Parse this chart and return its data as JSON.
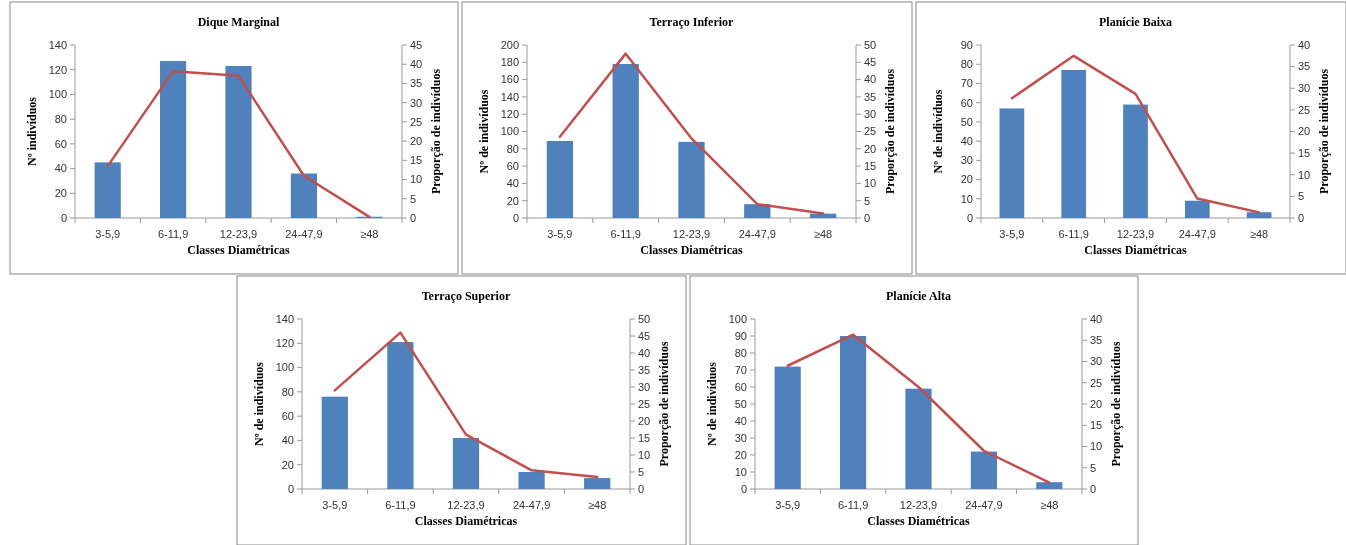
{
  "chart_data": [
    {
      "type": "bar",
      "title": "Dique Marginal",
      "xlabel": "Classes Diamétricas",
      "ylabel": "Nº indivíduos",
      "y2label": "Proporção de indivíduos",
      "categories": [
        "3-5,9",
        "6-11,9",
        "12-23,9",
        "24-47,9",
        "≥48"
      ],
      "ylim": [
        0,
        140
      ],
      "yticks": [
        0,
        20,
        40,
        60,
        80,
        100,
        120,
        140
      ],
      "y2lim": [
        0,
        45
      ],
      "y2ticks": [
        0,
        5,
        10,
        15,
        20,
        25,
        30,
        35,
        40,
        45
      ],
      "series": [
        {
          "color": "#4f81bd",
          "values": [
            45,
            127,
            123,
            36,
            1
          ]
        },
        {
          "type": "line",
          "axis": "y2",
          "color": "#c0504d",
          "values": [
            13.5,
            38.2,
            37,
            11,
            0.3
          ]
        }
      ]
    },
    {
      "type": "bar",
      "title": "Terraço Inferior",
      "xlabel": "Classes Diamétricas",
      "ylabel": "Nº de indivíduos",
      "y2label": "Proporção de indivíduos",
      "categories": [
        "3-5,9",
        "6-11,9",
        "12-23,9",
        "24-47,9",
        "≥48"
      ],
      "ylim": [
        0,
        200
      ],
      "yticks": [
        0,
        20,
        40,
        60,
        80,
        100,
        120,
        140,
        160,
        180,
        200
      ],
      "y2lim": [
        0,
        50
      ],
      "y2ticks": [
        0,
        5,
        10,
        15,
        20,
        25,
        30,
        35,
        40,
        45,
        50
      ],
      "series": [
        {
          "color": "#4f81bd",
          "values": [
            89,
            178,
            88,
            16,
            5
          ]
        },
        {
          "type": "line",
          "axis": "y2",
          "color": "#c0504d",
          "values": [
            23.5,
            47.5,
            23,
            4,
            1.3
          ]
        }
      ]
    },
    {
      "type": "bar",
      "title": "Planície Baixa",
      "xlabel": "Classes Diamétricas",
      "ylabel": "Nº de indivíduos",
      "y2label": "Proporção de indivíduos",
      "categories": [
        "3-5,9",
        "6-11,9",
        "12-23,9",
        "24-47,9",
        "≥48"
      ],
      "ylim": [
        0,
        90
      ],
      "yticks": [
        0,
        10,
        20,
        30,
        40,
        50,
        60,
        70,
        80,
        90
      ],
      "y2lim": [
        0,
        40
      ],
      "y2ticks": [
        0,
        5,
        10,
        15,
        20,
        25,
        30,
        35,
        40
      ],
      "series": [
        {
          "color": "#4f81bd",
          "values": [
            57,
            77,
            59,
            9,
            3
          ]
        },
        {
          "type": "line",
          "axis": "y2",
          "color": "#c0504d",
          "values": [
            27.7,
            37.5,
            28.7,
            4.5,
            1.3
          ]
        }
      ]
    },
    {
      "type": "bar",
      "title": "Terraço Superior",
      "xlabel": "Classes Diamétricas",
      "ylabel": "Nº de indivíduos",
      "y2label": "Proporção de indivíduos",
      "categories": [
        "3-5,9",
        "6-11,9",
        "12-23,9",
        "24-47,9",
        "≥48"
      ],
      "ylim": [
        0,
        140
      ],
      "yticks": [
        0,
        20,
        40,
        60,
        80,
        100,
        120,
        140
      ],
      "y2lim": [
        0,
        50
      ],
      "y2ticks": [
        0,
        5,
        10,
        15,
        20,
        25,
        30,
        35,
        40,
        45,
        50
      ],
      "series": [
        {
          "color": "#4f81bd",
          "values": [
            76,
            121,
            42,
            14,
            9
          ]
        },
        {
          "type": "line",
          "axis": "y2",
          "color": "#c0504d",
          "values": [
            29,
            46,
            16,
            5.5,
            3.5
          ]
        }
      ]
    },
    {
      "type": "bar",
      "title": "Planície Alta",
      "xlabel": "Classes Diamétricas",
      "ylabel": "Nº de indivíduos",
      "y2label": "Proporção de indivíduos",
      "categories": [
        "3-5,9",
        "6-11,9",
        "12-23,9",
        "24-47,9",
        "≥48"
      ],
      "ylim": [
        0,
        100
      ],
      "yticks": [
        0,
        10,
        20,
        30,
        40,
        50,
        60,
        70,
        80,
        90,
        100
      ],
      "y2lim": [
        0,
        40
      ],
      "y2ticks": [
        0,
        5,
        10,
        15,
        20,
        25,
        30,
        35,
        40
      ],
      "series": [
        {
          "color": "#4f81bd",
          "values": [
            72,
            90,
            59,
            22,
            4
          ]
        },
        {
          "type": "line",
          "axis": "y2",
          "color": "#c0504d",
          "values": [
            29,
            36.3,
            24,
            9,
            1.5
          ]
        }
      ]
    }
  ]
}
